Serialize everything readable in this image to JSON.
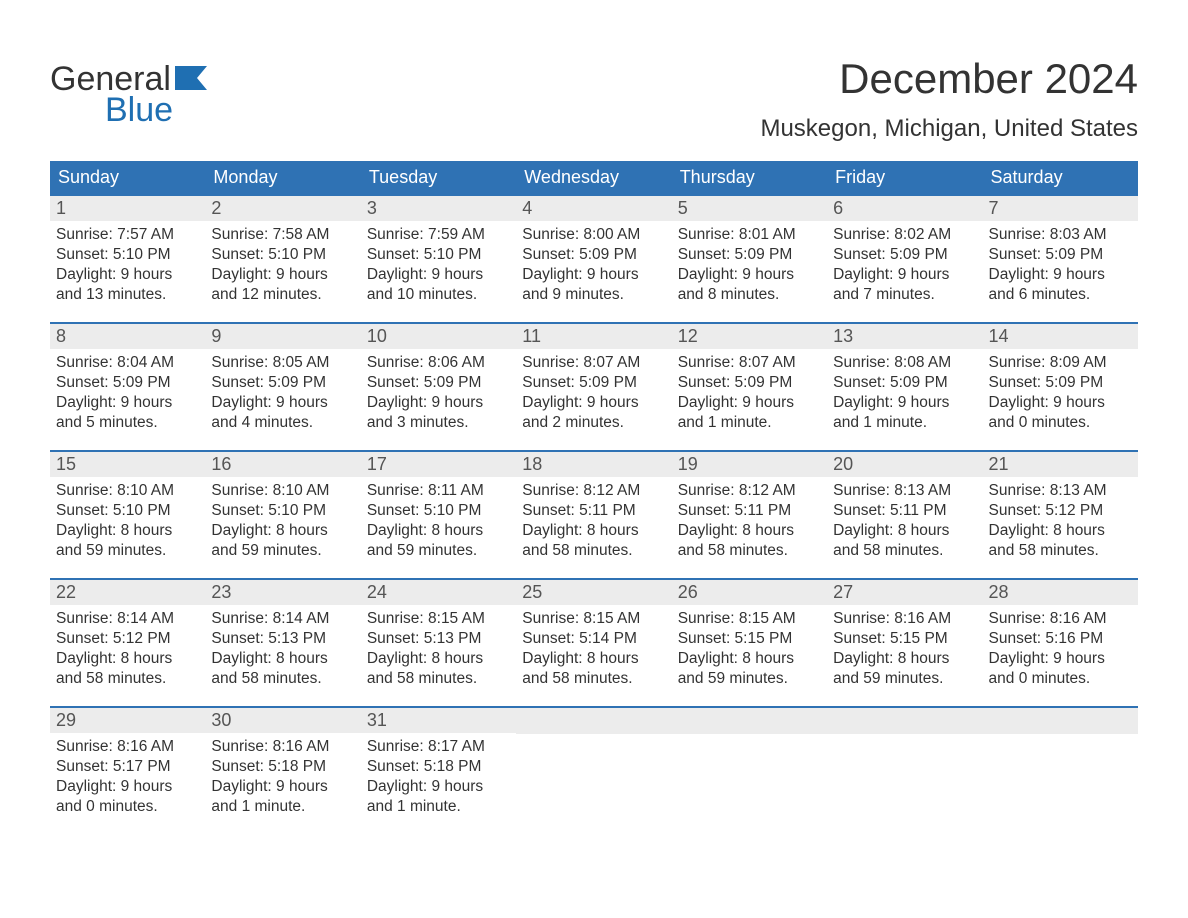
{
  "logo": {
    "text1": "General",
    "text2": "Blue",
    "text_color1": "#333333",
    "text_color2": "#1f6fb2"
  },
  "title": "December 2024",
  "location": "Muskegon, Michigan, United States",
  "colors": {
    "header_bg": "#2f72b4",
    "header_text": "#ffffff",
    "week_border": "#2f72b4",
    "daynum_bg": "#ececec",
    "daynum_text": "#555555",
    "info_text": "#333333",
    "page_bg": "#ffffff"
  },
  "typography": {
    "title_fontsize": 42,
    "location_fontsize": 24,
    "dayheader_fontsize": 18,
    "daynum_fontsize": 18,
    "info_fontsize": 15.5,
    "font_family": "Arial"
  },
  "day_headers": [
    "Sunday",
    "Monday",
    "Tuesday",
    "Wednesday",
    "Thursday",
    "Friday",
    "Saturday"
  ],
  "weeks": [
    [
      {
        "num": "1",
        "sunrise": "Sunrise: 7:57 AM",
        "sunset": "Sunset: 5:10 PM",
        "day1": "Daylight: 9 hours",
        "day2": "and 13 minutes."
      },
      {
        "num": "2",
        "sunrise": "Sunrise: 7:58 AM",
        "sunset": "Sunset: 5:10 PM",
        "day1": "Daylight: 9 hours",
        "day2": "and 12 minutes."
      },
      {
        "num": "3",
        "sunrise": "Sunrise: 7:59 AM",
        "sunset": "Sunset: 5:10 PM",
        "day1": "Daylight: 9 hours",
        "day2": "and 10 minutes."
      },
      {
        "num": "4",
        "sunrise": "Sunrise: 8:00 AM",
        "sunset": "Sunset: 5:09 PM",
        "day1": "Daylight: 9 hours",
        "day2": "and 9 minutes."
      },
      {
        "num": "5",
        "sunrise": "Sunrise: 8:01 AM",
        "sunset": "Sunset: 5:09 PM",
        "day1": "Daylight: 9 hours",
        "day2": "and 8 minutes."
      },
      {
        "num": "6",
        "sunrise": "Sunrise: 8:02 AM",
        "sunset": "Sunset: 5:09 PM",
        "day1": "Daylight: 9 hours",
        "day2": "and 7 minutes."
      },
      {
        "num": "7",
        "sunrise": "Sunrise: 8:03 AM",
        "sunset": "Sunset: 5:09 PM",
        "day1": "Daylight: 9 hours",
        "day2": "and 6 minutes."
      }
    ],
    [
      {
        "num": "8",
        "sunrise": "Sunrise: 8:04 AM",
        "sunset": "Sunset: 5:09 PM",
        "day1": "Daylight: 9 hours",
        "day2": "and 5 minutes."
      },
      {
        "num": "9",
        "sunrise": "Sunrise: 8:05 AM",
        "sunset": "Sunset: 5:09 PM",
        "day1": "Daylight: 9 hours",
        "day2": "and 4 minutes."
      },
      {
        "num": "10",
        "sunrise": "Sunrise: 8:06 AM",
        "sunset": "Sunset: 5:09 PM",
        "day1": "Daylight: 9 hours",
        "day2": "and 3 minutes."
      },
      {
        "num": "11",
        "sunrise": "Sunrise: 8:07 AM",
        "sunset": "Sunset: 5:09 PM",
        "day1": "Daylight: 9 hours",
        "day2": "and 2 minutes."
      },
      {
        "num": "12",
        "sunrise": "Sunrise: 8:07 AM",
        "sunset": "Sunset: 5:09 PM",
        "day1": "Daylight: 9 hours",
        "day2": "and 1 minute."
      },
      {
        "num": "13",
        "sunrise": "Sunrise: 8:08 AM",
        "sunset": "Sunset: 5:09 PM",
        "day1": "Daylight: 9 hours",
        "day2": "and 1 minute."
      },
      {
        "num": "14",
        "sunrise": "Sunrise: 8:09 AM",
        "sunset": "Sunset: 5:09 PM",
        "day1": "Daylight: 9 hours",
        "day2": "and 0 minutes."
      }
    ],
    [
      {
        "num": "15",
        "sunrise": "Sunrise: 8:10 AM",
        "sunset": "Sunset: 5:10 PM",
        "day1": "Daylight: 8 hours",
        "day2": "and 59 minutes."
      },
      {
        "num": "16",
        "sunrise": "Sunrise: 8:10 AM",
        "sunset": "Sunset: 5:10 PM",
        "day1": "Daylight: 8 hours",
        "day2": "and 59 minutes."
      },
      {
        "num": "17",
        "sunrise": "Sunrise: 8:11 AM",
        "sunset": "Sunset: 5:10 PM",
        "day1": "Daylight: 8 hours",
        "day2": "and 59 minutes."
      },
      {
        "num": "18",
        "sunrise": "Sunrise: 8:12 AM",
        "sunset": "Sunset: 5:11 PM",
        "day1": "Daylight: 8 hours",
        "day2": "and 58 minutes."
      },
      {
        "num": "19",
        "sunrise": "Sunrise: 8:12 AM",
        "sunset": "Sunset: 5:11 PM",
        "day1": "Daylight: 8 hours",
        "day2": "and 58 minutes."
      },
      {
        "num": "20",
        "sunrise": "Sunrise: 8:13 AM",
        "sunset": "Sunset: 5:11 PM",
        "day1": "Daylight: 8 hours",
        "day2": "and 58 minutes."
      },
      {
        "num": "21",
        "sunrise": "Sunrise: 8:13 AM",
        "sunset": "Sunset: 5:12 PM",
        "day1": "Daylight: 8 hours",
        "day2": "and 58 minutes."
      }
    ],
    [
      {
        "num": "22",
        "sunrise": "Sunrise: 8:14 AM",
        "sunset": "Sunset: 5:12 PM",
        "day1": "Daylight: 8 hours",
        "day2": "and 58 minutes."
      },
      {
        "num": "23",
        "sunrise": "Sunrise: 8:14 AM",
        "sunset": "Sunset: 5:13 PM",
        "day1": "Daylight: 8 hours",
        "day2": "and 58 minutes."
      },
      {
        "num": "24",
        "sunrise": "Sunrise: 8:15 AM",
        "sunset": "Sunset: 5:13 PM",
        "day1": "Daylight: 8 hours",
        "day2": "and 58 minutes."
      },
      {
        "num": "25",
        "sunrise": "Sunrise: 8:15 AM",
        "sunset": "Sunset: 5:14 PM",
        "day1": "Daylight: 8 hours",
        "day2": "and 58 minutes."
      },
      {
        "num": "26",
        "sunrise": "Sunrise: 8:15 AM",
        "sunset": "Sunset: 5:15 PM",
        "day1": "Daylight: 8 hours",
        "day2": "and 59 minutes."
      },
      {
        "num": "27",
        "sunrise": "Sunrise: 8:16 AM",
        "sunset": "Sunset: 5:15 PM",
        "day1": "Daylight: 8 hours",
        "day2": "and 59 minutes."
      },
      {
        "num": "28",
        "sunrise": "Sunrise: 8:16 AM",
        "sunset": "Sunset: 5:16 PM",
        "day1": "Daylight: 9 hours",
        "day2": "and 0 minutes."
      }
    ],
    [
      {
        "num": "29",
        "sunrise": "Sunrise: 8:16 AM",
        "sunset": "Sunset: 5:17 PM",
        "day1": "Daylight: 9 hours",
        "day2": "and 0 minutes."
      },
      {
        "num": "30",
        "sunrise": "Sunrise: 8:16 AM",
        "sunset": "Sunset: 5:18 PM",
        "day1": "Daylight: 9 hours",
        "day2": "and 1 minute."
      },
      {
        "num": "31",
        "sunrise": "Sunrise: 8:17 AM",
        "sunset": "Sunset: 5:18 PM",
        "day1": "Daylight: 9 hours",
        "day2": "and 1 minute."
      },
      null,
      null,
      null,
      null
    ]
  ]
}
